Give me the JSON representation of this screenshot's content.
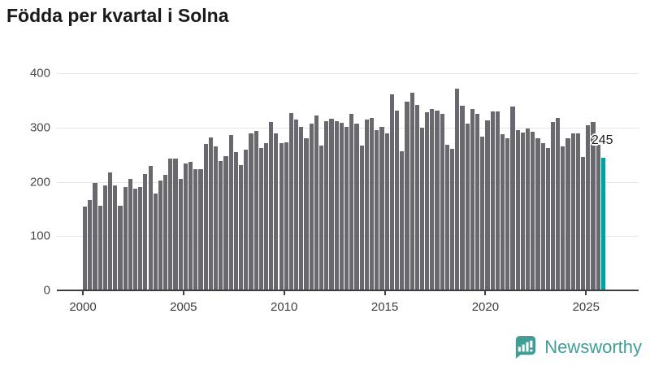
{
  "title": "Födda per kvartal i Solna",
  "annotation": {
    "label": "245"
  },
  "footer": {
    "brand": "Newsworthy"
  },
  "colors": {
    "bar": "#68686e",
    "highlight": "#00a09d",
    "gridline": "#e4e4e4",
    "axis": "#3f3f3f",
    "brand_teal": "#3f9e96"
  },
  "chart_data": {
    "type": "bar",
    "title": "Födda per kvartal i Solna",
    "xlabel": "",
    "ylabel": "",
    "grid": true,
    "ylim": [
      0,
      400
    ],
    "y_ticks": [
      0,
      100,
      200,
      300,
      400
    ],
    "x_ticks": [
      2000,
      2005,
      2010,
      2015,
      2020,
      2025
    ],
    "periodicity": "quarterly",
    "start_period": "2000 Q1",
    "end_period": "2025 Q4",
    "highlight_last": true,
    "highlight_label": "245",
    "values": [
      155,
      166,
      198,
      156,
      194,
      218,
      193,
      156,
      190,
      205,
      187,
      190,
      215,
      230,
      178,
      203,
      213,
      243,
      243,
      206,
      234,
      237,
      223,
      223,
      270,
      282,
      265,
      238,
      248,
      287,
      255,
      231,
      260,
      290,
      294,
      262,
      272,
      311,
      289,
      271,
      273,
      327,
      315,
      302,
      281,
      307,
      323,
      267,
      312,
      317,
      312,
      309,
      301,
      325,
      307,
      267,
      315,
      318,
      296,
      301,
      289,
      362,
      331,
      257,
      348,
      365,
      342,
      300,
      329,
      334,
      332,
      326,
      269,
      261,
      372,
      341,
      308,
      335,
      325,
      283,
      314,
      330,
      330,
      288,
      281,
      339,
      295,
      291,
      298,
      293,
      281,
      272,
      262,
      310,
      318,
      266,
      281,
      290,
      290,
      246,
      304,
      310,
      268,
      245
    ]
  }
}
